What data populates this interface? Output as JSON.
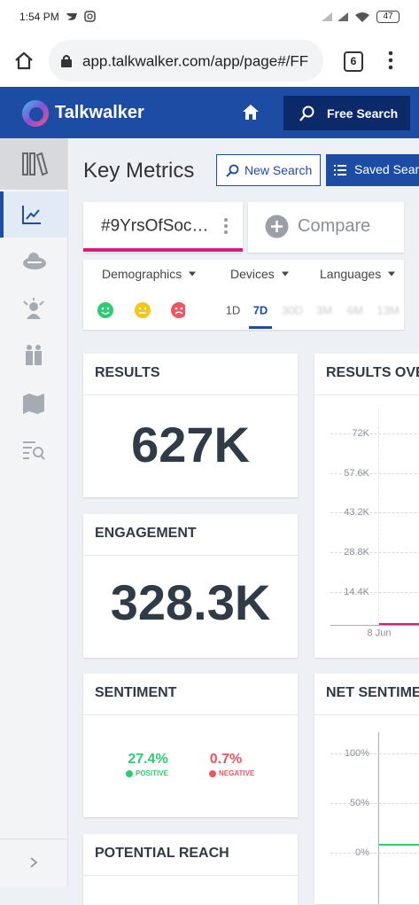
{
  "status_bar": {
    "time": "1:54 PM",
    "battery": "47"
  },
  "browser": {
    "url": "app.talkwalker.com/app/page#/FF",
    "tab_count": "6"
  },
  "header": {
    "logo": "Talkwalker",
    "free_search": "Free Search"
  },
  "page": {
    "title": "Key Metrics",
    "new_search": "New Search",
    "saved_searches": "Saved Sear"
  },
  "tabs": {
    "active": "#9YrsOfSoc…",
    "compare": "Compare"
  },
  "filters": {
    "dropdowns": [
      "Demographics",
      "Devices",
      "Languages"
    ],
    "time_ranges": [
      "1D",
      "7D",
      "30D",
      "3M",
      "6M",
      "13M"
    ],
    "selected_range_index": 1
  },
  "cards": {
    "results": {
      "title": "RESULTS",
      "value": "627K"
    },
    "results_overtime": {
      "title": "RESULTS OVE",
      "y_labels": [
        "72K",
        "57.6K",
        "43.2K",
        "28.8K",
        "14.4K"
      ],
      "x_label": "8 Jun"
    },
    "engagement": {
      "title": "ENGAGEMENT",
      "value": "328.3K"
    },
    "sentiment": {
      "title": "SENTIMENT",
      "positive": "27.4%",
      "positive_label": "POSITIVE",
      "negative": "0.7%",
      "negative_label": "NEGATIVE"
    },
    "net_sentiment": {
      "title": "NET SENTIME",
      "y_labels": [
        "100%",
        "50%",
        "0%"
      ]
    },
    "potential_reach": {
      "title": "POTENTIAL REACH"
    }
  }
}
